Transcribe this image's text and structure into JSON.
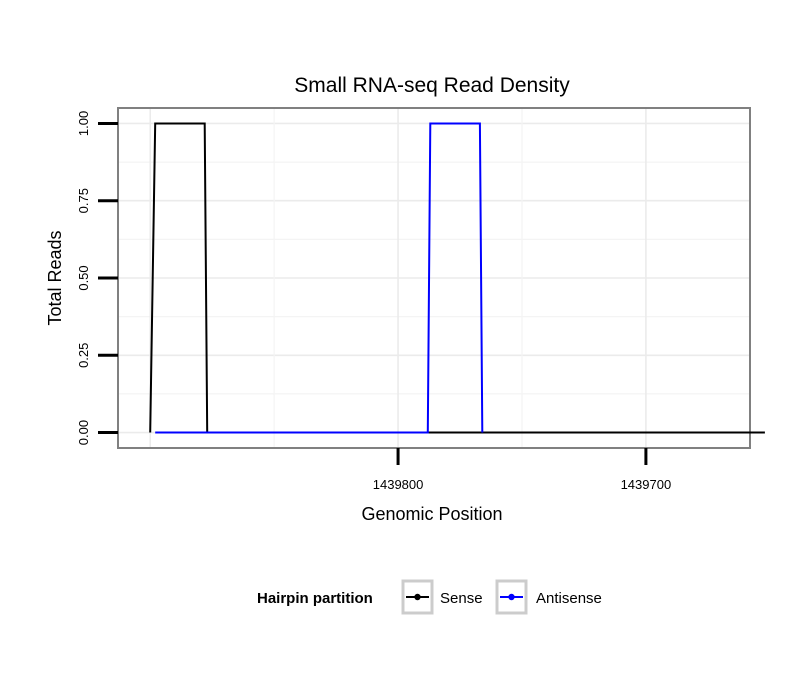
{
  "chart_data": {
    "type": "line",
    "title": "Small RNA-seq Read Density",
    "xlabel": "Genomic Position",
    "ylabel": "Total Reads",
    "x_reversed": true,
    "xlim": [
      1439913,
      1439658
    ],
    "ylim": [
      -0.05,
      1.05
    ],
    "x_ticks": [
      1439800,
      1439700
    ],
    "x_tick_labels": [
      "1439800",
      "1439700"
    ],
    "y_ticks": [
      0,
      0.25,
      0.5,
      0.75,
      1.0
    ],
    "y_tick_labels": [
      "0.00",
      "0.25",
      "0.50",
      "0.75",
      "1.00"
    ],
    "grid": true,
    "legend": {
      "title": "Hairpin partition",
      "position": "bottom"
    },
    "series": [
      {
        "name": "Sense",
        "color": "#000000",
        "x": [
          1439900,
          1439898,
          1439878,
          1439877,
          1439652
        ],
        "y": [
          0,
          1,
          1,
          0,
          0
        ]
      },
      {
        "name": "Antisense",
        "color": "#0000ff",
        "x": [
          1439898,
          1439877,
          1439788,
          1439787,
          1439767,
          1439766
        ],
        "y": [
          0,
          0,
          0,
          1,
          1,
          0
        ]
      }
    ]
  }
}
